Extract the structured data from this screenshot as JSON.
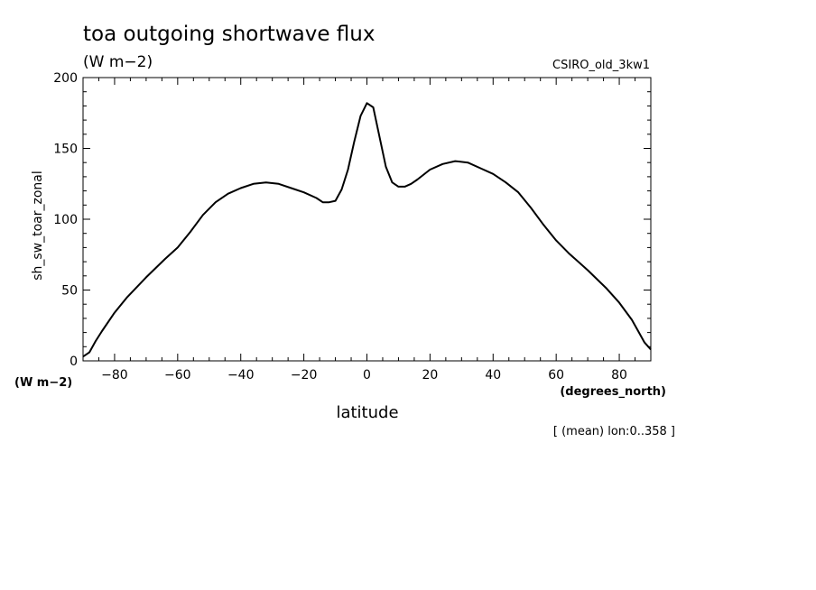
{
  "chart_data": {
    "type": "line",
    "title": "toa outgoing shortwave flux",
    "subtitle": "(W m−2)",
    "dataset_label": "CSIRO_old_3kw1",
    "ylabel": "sh_sw_toar_zonal",
    "y_units": "(W m−2)",
    "xlabel": "latitude",
    "x_units": "(degrees_north)",
    "footnote": "[ (mean) lon:0..358 ]",
    "xlim": [
      -90,
      90
    ],
    "ylim": [
      0,
      200
    ],
    "x_ticks": [
      -80,
      -60,
      -40,
      -20,
      0,
      20,
      40,
      60,
      80
    ],
    "x_tick_labels": [
      "−80",
      "−60",
      "−40",
      "−20",
      "0",
      "20",
      "40",
      "60",
      "80"
    ],
    "y_ticks": [
      0,
      50,
      100,
      150,
      200
    ],
    "y_tick_labels": [
      "0",
      "50",
      "100",
      "150",
      "200"
    ],
    "grid": false,
    "series": [
      {
        "x": [
          -90,
          -88,
          -86,
          -84,
          -80,
          -76,
          -70,
          -64,
          -60,
          -56,
          -52,
          -48,
          -44,
          -40,
          -36,
          -32,
          -28,
          -24,
          -20,
          -16,
          -14,
          -12,
          -10,
          -8,
          -6,
          -4,
          -2,
          0,
          2,
          4,
          6,
          8,
          10,
          12,
          14,
          16,
          20,
          24,
          28,
          32,
          36,
          40,
          44,
          48,
          52,
          56,
          60,
          64,
          70,
          76,
          80,
          84,
          86,
          88,
          90
        ],
        "y": [
          3,
          6,
          14,
          21,
          34,
          45,
          59,
          72,
          80,
          91,
          103,
          112,
          118,
          122,
          125,
          126,
          125,
          122,
          119,
          115,
          112,
          112,
          113,
          121,
          135,
          155,
          173,
          182,
          179,
          158,
          137,
          126,
          123,
          123,
          125,
          128,
          135,
          139,
          141,
          140,
          136,
          132,
          126,
          119,
          108,
          96,
          85,
          76,
          64,
          51,
          41,
          29,
          21,
          13,
          8
        ],
        "color": "#000000"
      }
    ]
  }
}
